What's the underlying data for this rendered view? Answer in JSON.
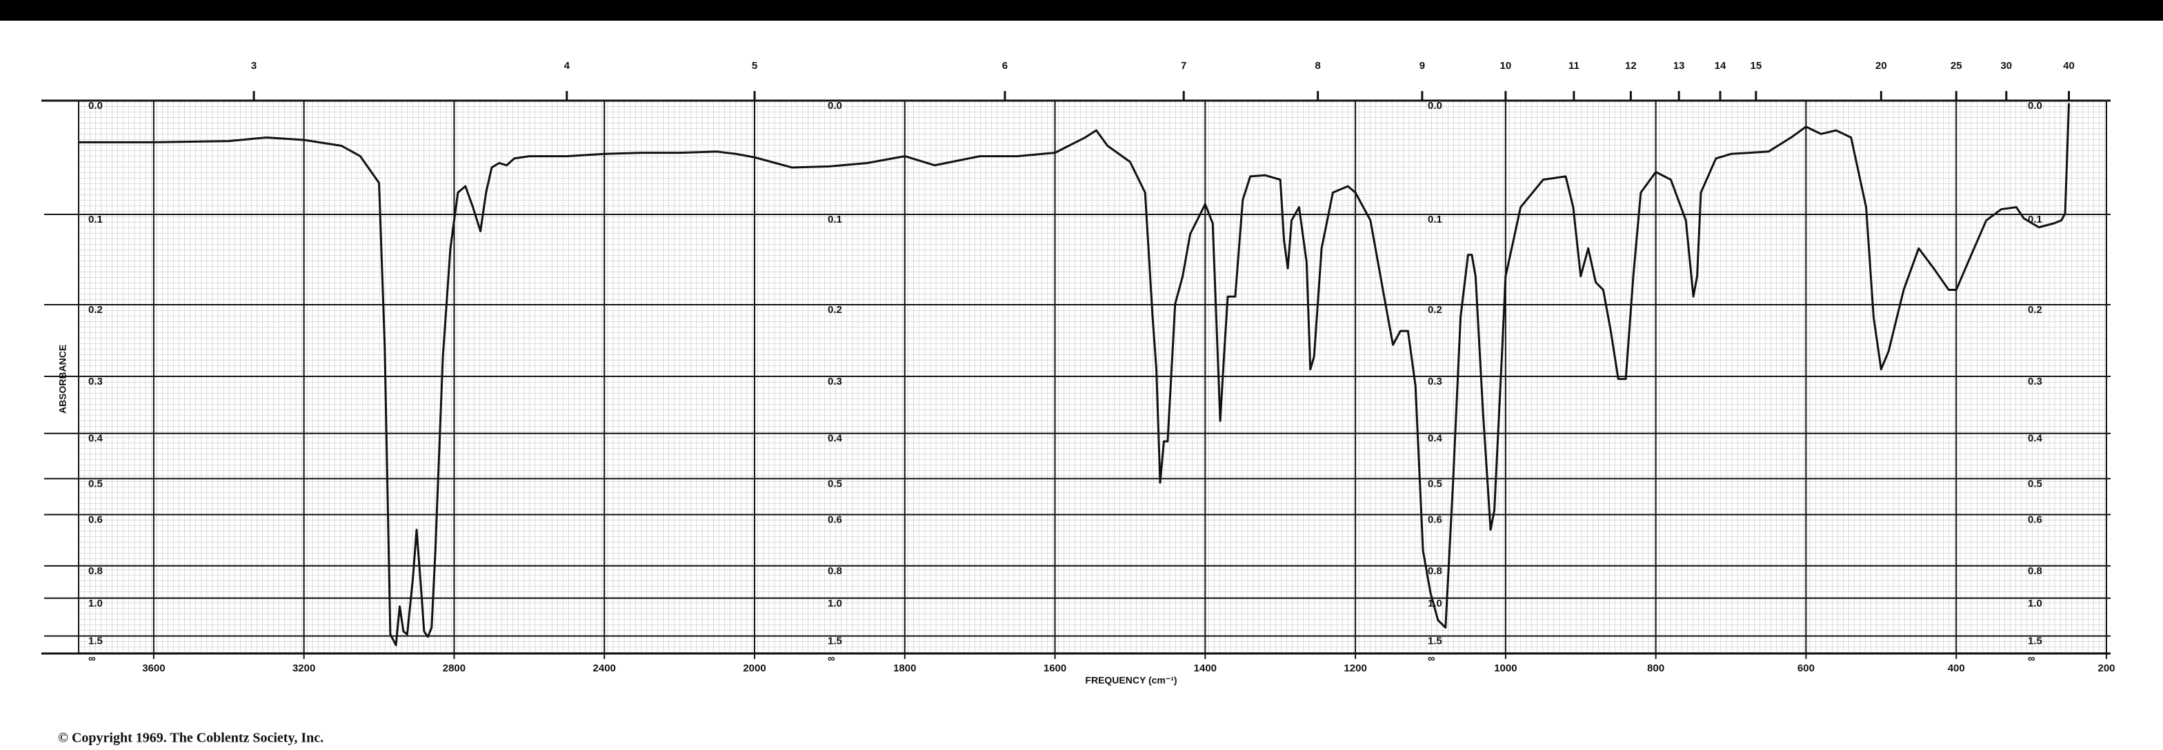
{
  "chart_data": {
    "type": "line",
    "x_label": "FREQUENCY (cm⁻¹)",
    "y_label": "ABSORBANCE",
    "copyright": "© Copyright 1969.  The Coblentz Society, Inc.",
    "yscale": "absorbance",
    "grid": true,
    "xlim": [
      3800,
      200
    ],
    "xticks": [
      3600,
      3200,
      2800,
      2400,
      2000,
      1800,
      1600,
      1400,
      1200,
      1000,
      800,
      600,
      400,
      200
    ],
    "top_xticks": [
      3,
      4,
      5,
      6,
      7,
      8,
      9,
      10,
      11,
      12,
      13,
      14,
      15,
      20,
      25,
      30,
      40
    ],
    "ylim": [
      0,
      "Infinity"
    ],
    "yticks": [
      {
        "value": 0,
        "label": "0.0"
      },
      0.1,
      0.2,
      0.3,
      0.4,
      0.5,
      0.6,
      0.8,
      {
        "value": 1,
        "label": "1.0"
      },
      1.5,
      {
        "value": "Infinity",
        "label": "∞"
      }
    ],
    "x": [
      3800,
      3600,
      3400,
      3300,
      3200,
      3100,
      3050,
      3000,
      2985,
      2970,
      2955,
      2945,
      2935,
      2925,
      2910,
      2900,
      2890,
      2880,
      2870,
      2860,
      2850,
      2830,
      2810,
      2790,
      2770,
      2750,
      2730,
      2715,
      2700,
      2680,
      2660,
      2640,
      2600,
      2500,
      2400,
      2300,
      2200,
      2100,
      2050,
      2000,
      1950,
      1900,
      1850,
      1800,
      1760,
      1700,
      1650,
      1600,
      1560,
      1545,
      1530,
      1500,
      1480,
      1470,
      1465,
      1460,
      1455,
      1450,
      1440,
      1430,
      1420,
      1400,
      1390,
      1380,
      1375,
      1370,
      1360,
      1350,
      1340,
      1320,
      1300,
      1295,
      1290,
      1285,
      1275,
      1265,
      1260,
      1255,
      1245,
      1230,
      1210,
      1200,
      1180,
      1170,
      1160,
      1150,
      1140,
      1130,
      1120,
      1110,
      1100,
      1090,
      1080,
      1070,
      1060,
      1050,
      1045,
      1040,
      1030,
      1020,
      1015,
      1005,
      1000,
      980,
      950,
      920,
      910,
      900,
      890,
      880,
      870,
      860,
      850,
      840,
      830,
      820,
      800,
      780,
      760,
      750,
      745,
      740,
      720,
      700,
      650,
      620,
      600,
      580,
      560,
      540,
      520,
      510,
      500,
      490,
      470,
      450,
      430,
      410,
      400,
      380,
      360,
      340,
      320,
      310,
      290,
      270,
      260,
      255,
      250
    ],
    "series": [
      {
        "color": "#111111",
        "values": [
          0.034,
          0.034,
          0.033,
          0.03,
          0.032,
          0.037,
          0.046,
          0.07,
          0.253,
          1.46,
          1.82,
          1.07,
          1.4,
          1.46,
          0.87,
          0.65,
          0.87,
          1.4,
          1.52,
          1.33,
          0.73,
          0.27,
          0.135,
          0.079,
          0.073,
          0.093,
          0.117,
          0.079,
          0.056,
          0.052,
          0.054,
          0.048,
          0.046,
          0.046,
          0.044,
          0.043,
          0.043,
          0.042,
          0.044,
          0.047,
          0.056,
          0.055,
          0.052,
          0.046,
          0.054,
          0.046,
          0.046,
          0.043,
          0.03,
          0.024,
          0.037,
          0.051,
          0.079,
          0.216,
          0.289,
          0.51,
          0.416,
          0.416,
          0.199,
          0.166,
          0.12,
          0.09,
          0.109,
          0.376,
          0.27,
          0.19,
          0.19,
          0.086,
          0.064,
          0.063,
          0.067,
          0.127,
          0.157,
          0.106,
          0.093,
          0.15,
          0.289,
          0.27,
          0.135,
          0.079,
          0.073,
          0.079,
          0.106,
          0.15,
          0.199,
          0.253,
          0.234,
          0.234,
          0.315,
          0.73,
          0.96,
          1.22,
          1.33,
          0.51,
          0.216,
          0.142,
          0.142,
          0.166,
          0.362,
          0.65,
          0.587,
          0.27,
          0.166,
          0.093,
          0.067,
          0.064,
          0.093,
          0.166,
          0.135,
          0.173,
          0.182,
          0.234,
          0.304,
          0.304,
          0.166,
          0.079,
          0.06,
          0.067,
          0.106,
          0.19,
          0.166,
          0.079,
          0.048,
          0.044,
          0.042,
          0.03,
          0.021,
          0.027,
          0.024,
          0.03,
          0.093,
          0.216,
          0.289,
          0.262,
          0.182,
          0.135,
          0.157,
          0.182,
          0.182,
          0.142,
          0.106,
          0.095,
          0.093,
          0.104,
          0.113,
          0.109,
          0.106,
          0.099,
          0.002
        ]
      }
    ]
  }
}
